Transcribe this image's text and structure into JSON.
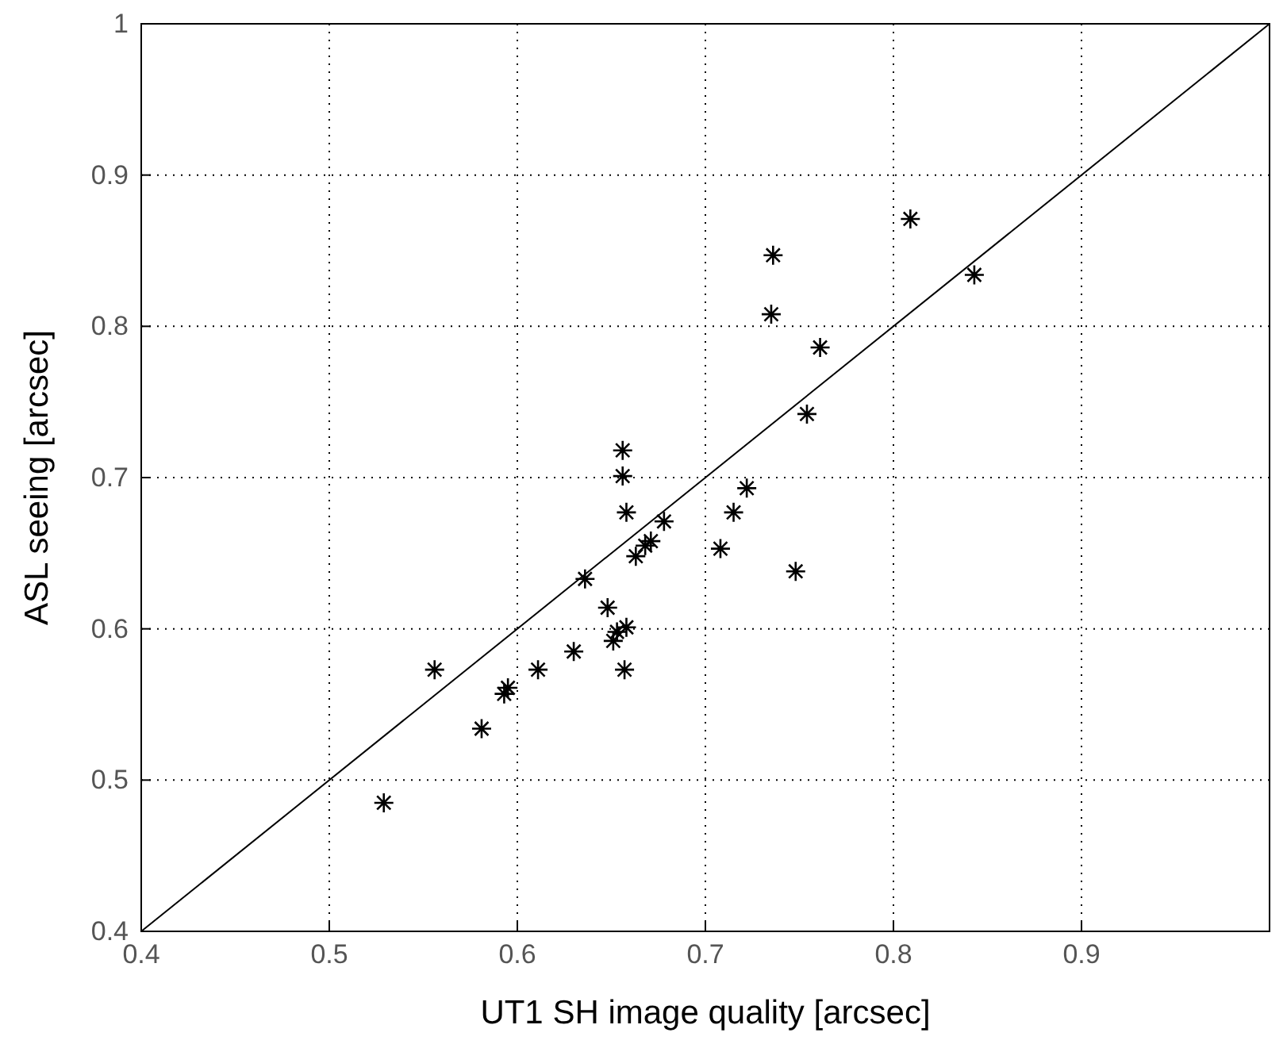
{
  "chart_data": {
    "type": "scatter",
    "xlabel": "UT1 SH image quality [arcsec]",
    "ylabel": "ASL seeing [arcsec]",
    "xlim": [
      0.4,
      1
    ],
    "ylim": [
      0.4,
      1
    ],
    "xticks": [
      0.4,
      0.5,
      0.6,
      0.7,
      0.8,
      0.9
    ],
    "yticks": [
      0.4,
      0.5,
      0.6,
      0.7,
      0.8,
      0.9,
      1
    ],
    "grid": true,
    "marker": "cross",
    "series": [
      {
        "color": "#000000",
        "x": [
          0.809,
          0.843,
          0.736,
          0.735,
          0.761,
          0.754,
          0.656,
          0.656,
          0.658,
          0.678,
          0.671,
          0.668,
          0.663,
          0.722,
          0.715,
          0.708,
          0.748,
          0.636,
          0.648,
          0.658,
          0.653,
          0.651,
          0.63,
          0.657,
          0.611,
          0.556,
          0.593,
          0.595,
          0.581,
          0.529
        ],
        "values": [
          0.871,
          0.834,
          0.847,
          0.808,
          0.786,
          0.742,
          0.718,
          0.701,
          0.677,
          0.671,
          0.658,
          0.655,
          0.648,
          0.693,
          0.677,
          0.653,
          0.638,
          0.633,
          0.614,
          0.601,
          0.598,
          0.592,
          0.585,
          0.573,
          0.573,
          0.573,
          0.557,
          0.561,
          0.534,
          0.485
        ]
      },
      {
        "type": "line",
        "color": "#000000",
        "x": [
          0.4,
          1
        ],
        "values": [
          0.4,
          1
        ],
        "marker": "none",
        "line_style": "solid"
      }
    ]
  }
}
